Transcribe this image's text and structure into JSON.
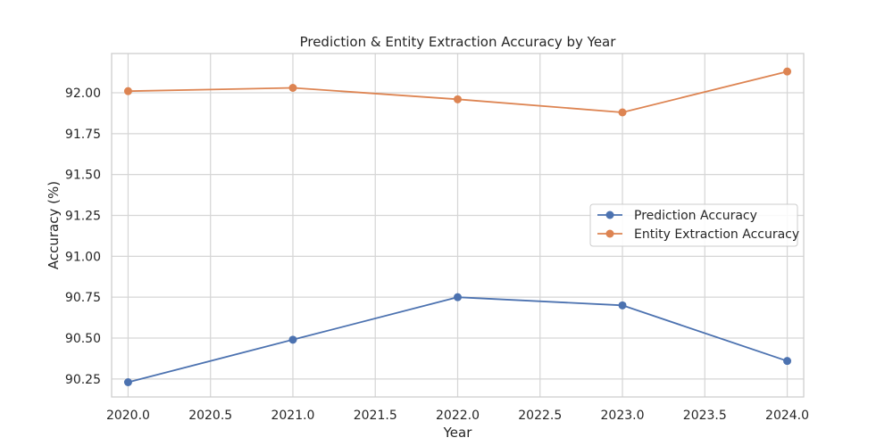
{
  "chart_data": {
    "type": "line",
    "title": "Prediction & Entity Extraction Accuracy by Year",
    "xlabel": "Year",
    "ylabel": "Accuracy (%)",
    "x": [
      2020,
      2021,
      2022,
      2023,
      2024
    ],
    "xlim": [
      2019.9,
      2024.1
    ],
    "ylim": [
      90.14,
      92.24
    ],
    "xticks": [
      2020.0,
      2020.5,
      2021.0,
      2021.5,
      2022.0,
      2022.5,
      2023.0,
      2023.5,
      2024.0
    ],
    "xtick_labels": [
      "2020.0",
      "2020.5",
      "2021.0",
      "2021.5",
      "2022.0",
      "2022.5",
      "2023.0",
      "2023.5",
      "2024.0"
    ],
    "yticks": [
      90.25,
      90.5,
      90.75,
      91.0,
      91.25,
      91.5,
      91.75,
      92.0
    ],
    "ytick_labels": [
      "90.25",
      "90.50",
      "90.75",
      "91.00",
      "91.25",
      "91.50",
      "91.75",
      "92.00"
    ],
    "grid": true,
    "legend_position": "center-right",
    "series": [
      {
        "name": "Prediction Accuracy",
        "color": "#4c72b0",
        "values": [
          90.23,
          90.49,
          90.75,
          90.7,
          90.36
        ]
      },
      {
        "name": "Entity Extraction Accuracy",
        "color": "#dd8452",
        "values": [
          92.01,
          92.03,
          91.96,
          91.88,
          92.13
        ]
      }
    ]
  }
}
